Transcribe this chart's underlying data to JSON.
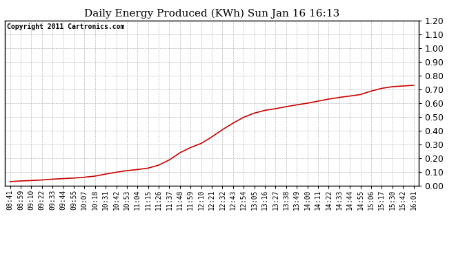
{
  "title": "Daily Energy Produced (KWh) Sun Jan 16 16:13",
  "copyright_text": "Copyright 2011 Cartronics.com",
  "line_color": "#cc0000",
  "background_color": "#ffffff",
  "plot_bg_color": "#ffffff",
  "grid_color": "#bbbbbb",
  "ylim": [
    0.0,
    1.2
  ],
  "yticks": [
    0.0,
    0.1,
    0.2,
    0.3,
    0.4,
    0.5,
    0.6,
    0.7,
    0.8,
    0.9,
    1.0,
    1.1,
    1.2
  ],
  "x_labels": [
    "08:41",
    "08:59",
    "09:10",
    "09:22",
    "09:33",
    "09:44",
    "09:55",
    "10:07",
    "10:18",
    "10:31",
    "10:42",
    "10:53",
    "11:04",
    "11:15",
    "11:26",
    "11:37",
    "11:48",
    "11:59",
    "12:10",
    "12:21",
    "12:32",
    "12:43",
    "12:54",
    "13:05",
    "13:16",
    "13:27",
    "13:38",
    "13:49",
    "14:00",
    "14:11",
    "14:22",
    "14:33",
    "14:44",
    "14:55",
    "15:06",
    "15:17",
    "15:30",
    "15:42",
    "16:01"
  ],
  "y_values": [
    0.03,
    0.035,
    0.038,
    0.042,
    0.048,
    0.052,
    0.056,
    0.062,
    0.07,
    0.085,
    0.098,
    0.11,
    0.118,
    0.128,
    0.15,
    0.188,
    0.24,
    0.278,
    0.308,
    0.355,
    0.408,
    0.455,
    0.498,
    0.528,
    0.548,
    0.56,
    0.575,
    0.588,
    0.6,
    0.615,
    0.63,
    0.642,
    0.652,
    0.663,
    0.688,
    0.708,
    0.72,
    0.725,
    0.73
  ],
  "title_fontsize": 11,
  "tick_fontsize": 7,
  "ytick_fontsize": 9,
  "copyright_fontsize": 7,
  "line_width": 1.2
}
